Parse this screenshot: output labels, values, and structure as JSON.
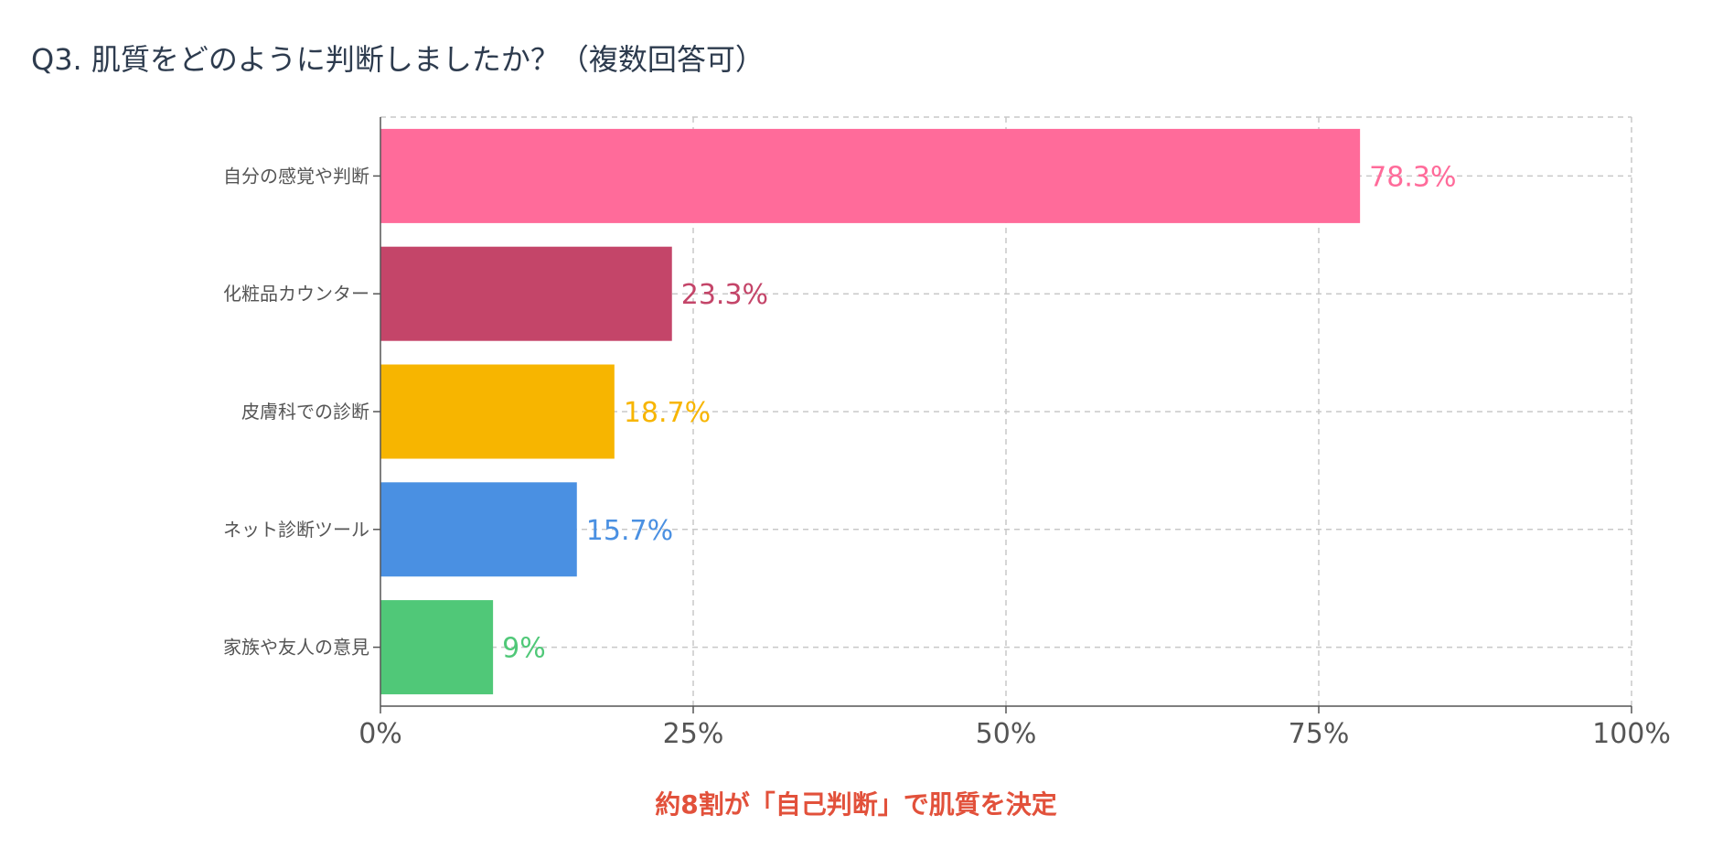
{
  "title": "Q3. 肌質をどのように判断しましたか？（複数回答可）",
  "footnote": "約8割が「自己判断」で肌質を決定",
  "chart_data": {
    "type": "bar",
    "orientation": "horizontal",
    "categories": [
      "自分の感覚や判断",
      "化粧品カウンター",
      "皮膚科での診断",
      "ネット診断ツール",
      "家族や友人の意見"
    ],
    "values": [
      78.3,
      23.3,
      18.7,
      15.7,
      9
    ],
    "value_labels": [
      "78.3%",
      "23.3%",
      "18.7%",
      "15.7%",
      "9%"
    ],
    "colors": [
      "#ff6b9a",
      "#c44569",
      "#f7b500",
      "#4a90e2",
      "#50c878"
    ],
    "xlim": [
      0,
      100
    ],
    "xticks": [
      0,
      25,
      50,
      75,
      100
    ],
    "xtick_labels": [
      "0%",
      "25%",
      "50%",
      "75%",
      "100%"
    ],
    "grid": true,
    "title": "Q3. 肌質をどのように判断しましたか？（複数回答可）",
    "xlabel": "",
    "ylabel": ""
  }
}
